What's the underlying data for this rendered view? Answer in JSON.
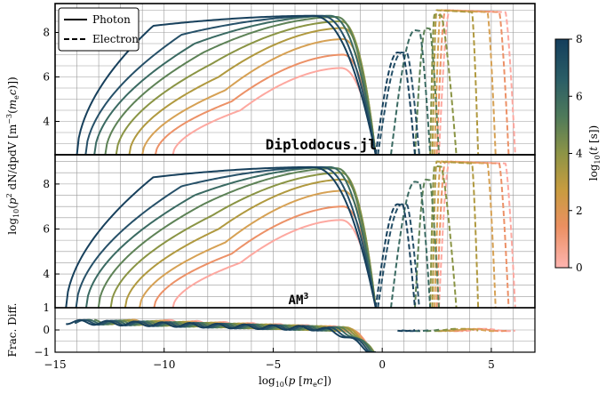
{
  "chart_data": {
    "type": "line",
    "xlabel": "log10(p [m_e c])",
    "xlim": [
      -15,
      7
    ],
    "x_ticks": [
      -15,
      -10,
      -5,
      0,
      5
    ],
    "panels": [
      {
        "id": "diplodocus",
        "label": "Diplodocus.jl",
        "ylim": [
          2.5,
          9.3
        ],
        "y_ticks": [
          4,
          6,
          8
        ],
        "grid": true
      },
      {
        "id": "am3",
        "label": "AM",
        "label_superscript": "3",
        "ylim": [
          2.5,
          9.3
        ],
        "y_ticks": [
          4,
          6,
          8
        ],
        "grid": true
      },
      {
        "id": "frac-diff",
        "ylabel": "Frac. Diff.",
        "ylim": [
          -1,
          1
        ],
        "y_ticks": [
          -1,
          0,
          1
        ],
        "grid": true
      }
    ],
    "shared_ylabel": "log10(p^2 dN/dpdV [m^-3 (m_e c)])",
    "legend": {
      "placement": "top-left",
      "entries": [
        {
          "name": "Photon",
          "style": "solid"
        },
        {
          "name": "Electron",
          "style": "dashed"
        }
      ]
    },
    "colorbar": {
      "label": "log10(t [s])",
      "range": [
        0,
        8
      ],
      "ticks": [
        0,
        2,
        4,
        6,
        8
      ],
      "colors": [
        "#fdb4b0",
        "#eb9061",
        "#c89c3f",
        "#8d9446",
        "#4f7a5a",
        "#2b5e66",
        "#143e5c"
      ]
    },
    "series_params": [
      {
        "t": 0,
        "color": "#fda8a0",
        "photon": {
          "xs": -9.6,
          "xk": -6.5,
          "ys": 4.5,
          "ypk": 6.4,
          "xpk": -1.9,
          "xc": -0.3
        },
        "electron": {
          "x0": 2.6,
          "x1": 3.1,
          "x2": 6.1,
          "y": 9.0
        }
      },
      {
        "t": 1,
        "color": "#ec9167",
        "photon": {
          "xs": -10.4,
          "xk": -6.9,
          "ys": 4.9,
          "ypk": 7.0,
          "xpk": -1.8,
          "xc": -0.3
        },
        "electron": {
          "x0": 2.5,
          "x1": 2.9,
          "x2": 5.8,
          "y": 9.0
        }
      },
      {
        "t": 2,
        "color": "#d6a154",
        "photon": {
          "xs": -11.0,
          "xk": -7.2,
          "ys": 5.4,
          "ypk": 7.7,
          "xpk": -1.8,
          "xc": -0.3
        },
        "electron": {
          "x0": 2.4,
          "x1": 2.7,
          "x2": 5.2,
          "y": 9.0
        }
      },
      {
        "t": 3,
        "color": "#b0993f",
        "photon": {
          "xs": -11.6,
          "xk": -7.5,
          "ys": 6.0,
          "ypk": 8.2,
          "xpk": -1.8,
          "xc": -0.3
        },
        "electron": {
          "x0": 2.3,
          "x1": 2.5,
          "x2": 4.4,
          "y": 9.0
        }
      },
      {
        "t": 4,
        "color": "#8a9444",
        "photon": {
          "xs": -12.2,
          "xk": -7.8,
          "ys": 6.6,
          "ypk": 8.5,
          "xpk": -1.9,
          "xc": -0.3
        },
        "electron": {
          "x0": 2.2,
          "x1": 2.4,
          "x2": 3.4,
          "y": 8.8
        }
      },
      {
        "t": 5,
        "color": "#5d8256",
        "photon": {
          "xs": -12.7,
          "xk": -8.2,
          "ys": 7.1,
          "ypk": 8.7,
          "xpk": -2.1,
          "xc": -0.3
        },
        "electron": {
          "x0": 1.5,
          "x1": 2.0,
          "x2": 2.6,
          "y": 8.2
        }
      },
      {
        "t": 6,
        "color": "#3a6a62",
        "photon": {
          "xs": -13.2,
          "xk": -8.6,
          "ys": 7.5,
          "ypk": 8.75,
          "xpk": -2.4,
          "xc": -0.3
        },
        "electron": {
          "x0": 0.4,
          "x1": 1.5,
          "x2": 2.2,
          "y": 8.1
        }
      },
      {
        "t": 7,
        "color": "#265068",
        "photon": {
          "xs": -13.6,
          "xk": -9.2,
          "ys": 7.9,
          "ypk": 8.75,
          "xpk": -2.8,
          "xc": -0.3
        },
        "electron": {
          "x0": -0.2,
          "x1": 0.9,
          "x2": 1.7,
          "y": 7.1
        }
      },
      {
        "t": 8,
        "color": "#17405c",
        "photon": {
          "xs": -14.0,
          "xk": -10.5,
          "ys": 8.3,
          "ypk": 8.75,
          "xpk": -3.2,
          "xc": -0.3
        },
        "electron": {
          "x0": -0.3,
          "x1": 0.7,
          "x2": 1.5,
          "y": 7.1
        }
      }
    ]
  }
}
